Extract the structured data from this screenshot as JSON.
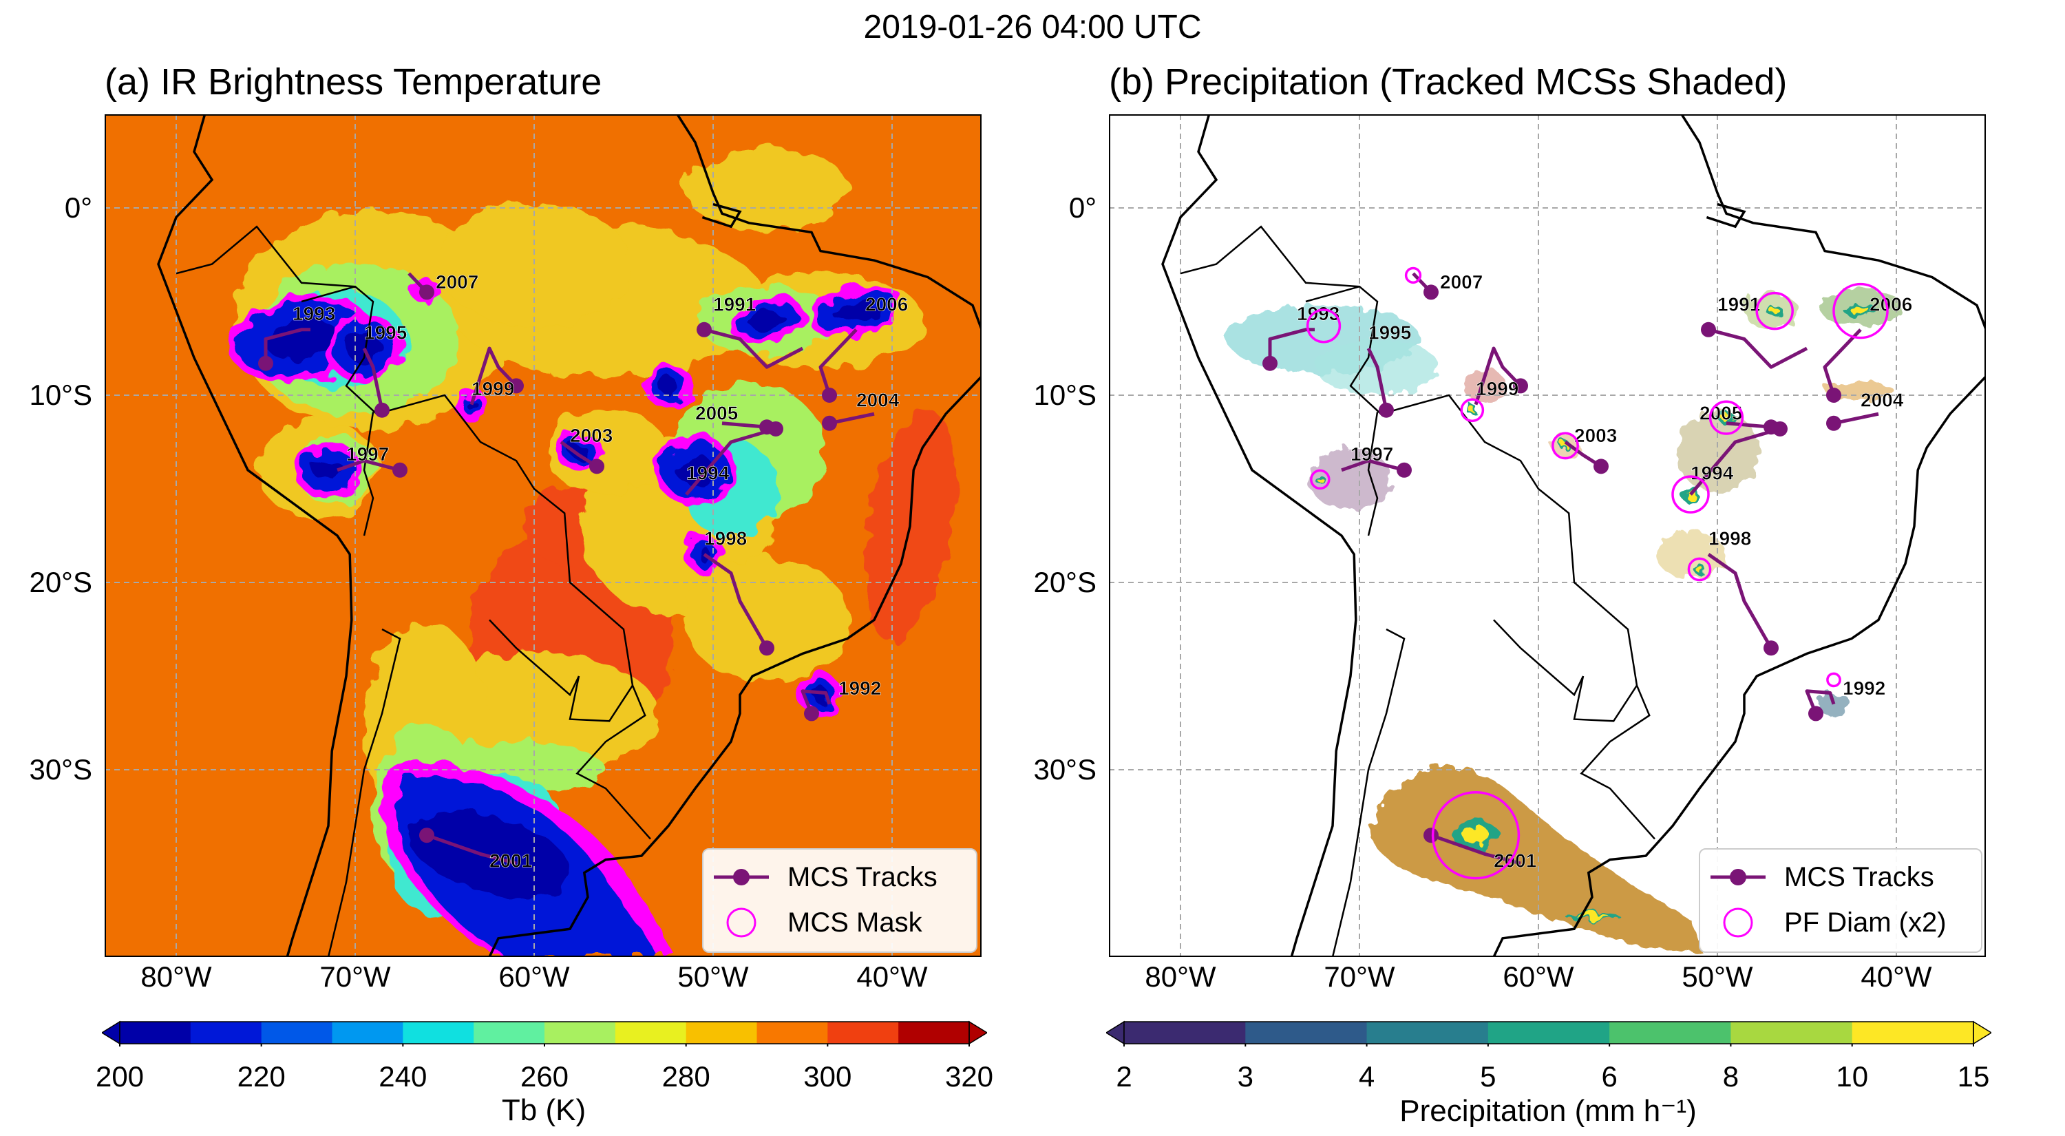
{
  "figure": {
    "suptitle": "2019-01-26 04:00 UTC"
  },
  "panel_a": {
    "title": "(a) IR Brightness Temperature",
    "legend": {
      "tracks": "MCS Tracks",
      "mask": "MCS Mask"
    },
    "colorbar": {
      "label": "Tb (K)",
      "ticks": [
        "200",
        "220",
        "240",
        "260",
        "280",
        "300",
        "320"
      ],
      "colors": [
        "#0000a8",
        "#0018d8",
        "#0058e8",
        "#0098f0",
        "#10e0e0",
        "#60f0a0",
        "#a8f060",
        "#e8f020",
        "#f8c000",
        "#f87800",
        "#f04010",
        "#b00000"
      ]
    },
    "background_colors": {
      "land_warm": "#f07000",
      "hot": "#f04818",
      "cool": "#f0c820",
      "cold": "#90e8a0",
      "mask": "#ff00ff",
      "deep": "#0010d0"
    }
  },
  "panel_b": {
    "title": "(b) Precipitation (Tracked MCSs Shaded)",
    "legend": {
      "tracks": "MCS Tracks",
      "mask": "PF Diam (x2)"
    },
    "colorbar": {
      "label": "Precipitation (mm h⁻¹)",
      "ticks": [
        "2",
        "3",
        "4",
        "5",
        "6",
        "8",
        "10",
        "15"
      ],
      "colors": [
        "#3b2a70",
        "#2e5a8a",
        "#287e8e",
        "#20a486",
        "#4cc26c",
        "#a8d840",
        "#fde725"
      ]
    }
  },
  "axes": {
    "lon_ticks": [
      "80°W",
      "70°W",
      "60°W",
      "50°W",
      "40°W"
    ],
    "lat_ticks": [
      "0°",
      "10°S",
      "20°S",
      "30°S"
    ]
  },
  "tracks": [
    {
      "id": "1991",
      "path": [
        [
          -45,
          -7.5
        ],
        [
          -47,
          -8.5
        ],
        [
          -48.5,
          -7
        ],
        [
          -50.5,
          -6.5
        ]
      ],
      "label_at": [
        -50,
        -5.5
      ],
      "end": "last"
    },
    {
      "id": "1992",
      "path": [
        [
          -44.5,
          -27
        ],
        [
          -45,
          -25.8
        ],
        [
          -43.7,
          -25.9
        ],
        [
          -43.5,
          -26.5
        ]
      ],
      "label_at": [
        -43,
        -26
      ],
      "end": "first"
    },
    {
      "id": "1993",
      "path": [
        [
          -75,
          -8.3
        ],
        [
          -75,
          -7
        ],
        [
          -73,
          -6.5
        ],
        [
          -72.5,
          -6.5
        ]
      ],
      "label_at": [
        -73.5,
        -6
      ],
      "end": "first"
    },
    {
      "id": "1994",
      "path": [
        [
          -51.5,
          -15.3
        ],
        [
          -49,
          -12.5
        ],
        [
          -46.5,
          -11.8
        ]
      ],
      "label_at": [
        -51.5,
        -14.5
      ],
      "end": "last"
    },
    {
      "id": "1995",
      "path": [
        [
          -68.5,
          -10.8
        ],
        [
          -69,
          -8.5
        ],
        [
          -69.5,
          -7.5
        ]
      ],
      "label_at": [
        -69.5,
        -7
      ],
      "end": "first"
    },
    {
      "id": "1997",
      "path": [
        [
          -67.5,
          -14
        ],
        [
          -69.5,
          -13.5
        ],
        [
          -71,
          -14
        ]
      ],
      "label_at": [
        -70.5,
        -13.5
      ],
      "end": "first"
    },
    {
      "id": "1998",
      "path": [
        [
          -47,
          -23.5
        ],
        [
          -48.5,
          -21
        ],
        [
          -49,
          -19.5
        ],
        [
          -50.5,
          -18.5
        ]
      ],
      "label_at": [
        -50.5,
        -18
      ],
      "end": "first"
    },
    {
      "id": "1999",
      "path": [
        [
          -61,
          -9.5
        ],
        [
          -62,
          -8.5
        ],
        [
          -62.5,
          -7.5
        ],
        [
          -63.5,
          -10.5
        ]
      ],
      "label_at": [
        -63.5,
        -10
      ],
      "end": "first"
    },
    {
      "id": "2001",
      "path": [
        [
          -66,
          -33.5
        ],
        [
          -63,
          -34.5
        ],
        [
          -61,
          -35
        ]
      ],
      "label_at": [
        -62.5,
        -35.2
      ],
      "end": "first"
    },
    {
      "id": "2003",
      "path": [
        [
          -56.5,
          -13.8
        ],
        [
          -57.5,
          -13.2
        ],
        [
          -58.5,
          -12.5
        ]
      ],
      "label_at": [
        -58,
        -12.5
      ],
      "end": "first"
    },
    {
      "id": "2004",
      "path": [
        [
          -43.5,
          -11.5
        ],
        [
          -41,
          -11
        ]
      ],
      "label_at": [
        -42,
        -10.6
      ],
      "end": "first"
    },
    {
      "id": "2005",
      "path": [
        [
          -47,
          -11.7
        ],
        [
          -49.5,
          -11.5
        ]
      ],
      "label_at": [
        -51,
        -11.3
      ],
      "end": "first"
    },
    {
      "id": "2006",
      "path": [
        [
          -43.5,
          -10
        ],
        [
          -44,
          -8.5
        ],
        [
          -42,
          -6.5
        ]
      ],
      "label_at": [
        -41.5,
        -5.5
      ],
      "end": "first"
    },
    {
      "id": "2007",
      "path": [
        [
          -66,
          -4.5
        ],
        [
          -67,
          -3.5
        ]
      ],
      "label_at": [
        -65.5,
        -4.3
      ],
      "end": "first"
    }
  ],
  "pf_circles": [
    {
      "lon": -63.5,
      "lat": -33.5,
      "r": 2.4
    },
    {
      "lon": -42,
      "lat": -5.5,
      "r": 1.5
    },
    {
      "lon": -46.8,
      "lat": -5.5,
      "r": 1.0
    },
    {
      "lon": -72,
      "lat": -6.3,
      "r": 0.9
    },
    {
      "lon": -51.5,
      "lat": -15.3,
      "r": 1.0
    },
    {
      "lon": -49.5,
      "lat": -11.2,
      "r": 0.9
    },
    {
      "lon": -58.5,
      "lat": -12.7,
      "r": 0.7
    },
    {
      "lon": -63.7,
      "lat": -10.8,
      "r": 0.6
    },
    {
      "lon": -51,
      "lat": -19.3,
      "r": 0.6
    },
    {
      "lon": -72.2,
      "lat": -14.5,
      "r": 0.5
    },
    {
      "lon": -67,
      "lat": -3.6,
      "r": 0.4
    },
    {
      "lon": -43.5,
      "lat": -25.2,
      "r": 0.35
    }
  ],
  "coastline": [
    [
      -80,
      9
    ],
    [
      -77.5,
      8
    ],
    [
      -79,
      3
    ],
    [
      -78,
      1.5
    ],
    [
      -80,
      -0.5
    ],
    [
      -81,
      -3
    ],
    [
      -80,
      -5.5
    ],
    [
      -79,
      -8
    ],
    [
      -77,
      -12
    ],
    [
      -76,
      -14
    ],
    [
      -71,
      -17.5
    ],
    [
      -70.3,
      -18.5
    ],
    [
      -70.2,
      -22
    ],
    [
      -70.5,
      -25
    ],
    [
      -71.3,
      -29
    ],
    [
      -71.5,
      -33
    ],
    [
      -72.5,
      -36
    ],
    [
      -73.5,
      -39
    ],
    [
      -73.8,
      -40
    ]
  ],
  "coastline_east": [
    [
      -62.5,
      -40
    ],
    [
      -62,
      -39
    ],
    [
      -58,
      -38.5
    ],
    [
      -57,
      -36.8
    ],
    [
      -57.2,
      -35.5
    ],
    [
      -56,
      -34.8
    ],
    [
      -54,
      -34.6
    ],
    [
      -52.5,
      -33
    ],
    [
      -51,
      -31
    ],
    [
      -49,
      -28.5
    ],
    [
      -48.5,
      -27
    ],
    [
      -48.5,
      -26
    ],
    [
      -47.8,
      -25
    ],
    [
      -45,
      -23.8
    ],
    [
      -42.5,
      -23
    ],
    [
      -41,
      -22
    ],
    [
      -39.5,
      -19
    ],
    [
      -39,
      -17
    ],
    [
      -38.8,
      -14
    ],
    [
      -38.3,
      -12.8
    ],
    [
      -37,
      -11
    ],
    [
      -35,
      -9
    ],
    [
      -34.8,
      -7
    ],
    [
      -35.5,
      -5.2
    ],
    [
      -38,
      -3.7
    ],
    [
      -41,
      -2.8
    ],
    [
      -44,
      -2.3
    ],
    [
      -44.5,
      -1.3
    ],
    [
      -48,
      -0.8
    ],
    [
      -49.5,
      -0.3
    ],
    [
      -50,
      0.8
    ],
    [
      -51,
      3.5
    ],
    [
      -52,
      5
    ],
    [
      -54,
      5.8
    ],
    [
      -57,
      6
    ],
    [
      -60,
      8.5
    ],
    [
      -62,
      9
    ]
  ],
  "coastline_amazon": [
    [
      -50.6,
      -0.5
    ],
    [
      -49,
      -1
    ],
    [
      -48.5,
      -0.2
    ],
    [
      -50,
      0.2
    ]
  ],
  "borders": [
    [
      [
        -73,
        -5
      ],
      [
        -70,
        -4.2
      ],
      [
        -69,
        -5
      ],
      [
        -69.5,
        -8
      ],
      [
        -70.5,
        -9.5
      ],
      [
        -68.8,
        -11
      ],
      [
        -65,
        -10
      ],
      [
        -63,
        -12.5
      ],
      [
        -61,
        -13.5
      ],
      [
        -60,
        -15
      ],
      [
        -58.3,
        -16.3
      ],
      [
        -58,
        -20
      ],
      [
        -55,
        -22.5
      ],
      [
        -54.5,
        -25.5
      ],
      [
        -53.8,
        -27.1
      ],
      [
        -56,
        -28.5
      ],
      [
        -57.6,
        -30.2
      ],
      [
        -56,
        -31
      ],
      [
        -53.5,
        -33.7
      ]
    ],
    [
      [
        -80,
        -3.5
      ],
      [
        -78,
        -3
      ],
      [
        -75.5,
        -1
      ],
      [
        -73,
        -4
      ],
      [
        -70,
        -4.2
      ]
    ],
    [
      [
        -69,
        -10.9
      ],
      [
        -69.5,
        -14
      ],
      [
        -69,
        -15.5
      ],
      [
        -69.5,
        -17.5
      ]
    ],
    [
      [
        -57.5,
        -25
      ],
      [
        -58,
        -27.3
      ],
      [
        -55.8,
        -27.4
      ],
      [
        -54.5,
        -25.5
      ]
    ],
    [
      [
        -62.5,
        -22
      ],
      [
        -61,
        -23.5
      ],
      [
        -58,
        -26
      ],
      [
        -57.5,
        -25
      ]
    ],
    [
      [
        -68.5,
        -22.5
      ],
      [
        -67.5,
        -23
      ],
      [
        -68.5,
        -27
      ],
      [
        -69.5,
        -30
      ],
      [
        -70,
        -33
      ],
      [
        -70.5,
        -36
      ],
      [
        -71.5,
        -40
      ]
    ]
  ]
}
